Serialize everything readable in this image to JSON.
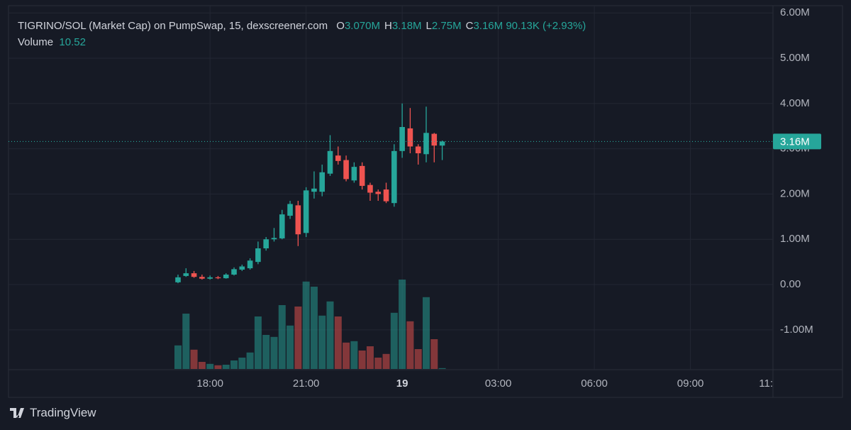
{
  "header": {
    "title": "TIGRINO/SOL (Market Cap) on PumpSwap, 15, dexscreener.com",
    "ohlc": [
      {
        "key": "O",
        "value": "3.070M"
      },
      {
        "key": "H",
        "value": "3.18M"
      },
      {
        "key": "L",
        "value": "2.75M"
      },
      {
        "key": "C",
        "value": "3.16M"
      }
    ],
    "change": "90.13K (+2.93%)",
    "volume_label": "Volume",
    "volume_value": "10.52"
  },
  "chart_data": {
    "type": "candlestick",
    "categories": [
      "17:00",
      "17:15",
      "17:30",
      "17:45",
      "18:00",
      "18:15",
      "18:30",
      "18:45",
      "19:00",
      "19:15",
      "19:30",
      "19:45",
      "20:00",
      "20:15",
      "20:30",
      "20:45",
      "21:00",
      "21:15",
      "21:30",
      "21:45",
      "22:00",
      "22:15",
      "22:30",
      "22:45",
      "23:00",
      "23:15",
      "23:30",
      "23:45",
      "00:00",
      "00:15",
      "00:30",
      "00:45",
      "01:00",
      "01:15"
    ],
    "open": [
      0.05,
      0.19,
      0.25,
      0.17,
      0.13,
      0.16,
      0.14,
      0.22,
      0.33,
      0.36,
      0.5,
      0.8,
      1.0,
      1.02,
      1.52,
      1.75,
      1.14,
      2.05,
      2.05,
      2.45,
      2.85,
      2.75,
      2.3,
      2.62,
      2.2,
      2.05,
      2.1,
      1.8,
      2.95,
      3.45,
      3.05,
      2.88,
      3.33,
      3.07
    ],
    "high": [
      0.22,
      0.36,
      0.3,
      0.22,
      0.2,
      0.19,
      0.25,
      0.38,
      0.44,
      0.58,
      0.95,
      1.05,
      1.25,
      1.65,
      1.85,
      1.85,
      2.15,
      2.5,
      2.65,
      3.3,
      3.05,
      2.85,
      2.7,
      2.7,
      2.25,
      2.1,
      2.25,
      3.1,
      4.0,
      3.9,
      3.1,
      3.93,
      3.35,
      3.18
    ],
    "low": [
      0.03,
      0.17,
      0.15,
      0.11,
      0.11,
      0.12,
      0.13,
      0.2,
      0.3,
      0.33,
      0.45,
      0.75,
      0.95,
      1.0,
      1.45,
      0.85,
      1.05,
      1.9,
      1.95,
      2.4,
      2.65,
      2.28,
      2.25,
      2.1,
      1.85,
      1.85,
      1.8,
      1.72,
      2.8,
      2.9,
      2.65,
      2.7,
      2.7,
      2.75
    ],
    "close": [
      0.16,
      0.25,
      0.17,
      0.13,
      0.16,
      0.14,
      0.22,
      0.34,
      0.4,
      0.53,
      0.8,
      1.0,
      1.03,
      1.55,
      1.78,
      1.11,
      2.08,
      2.12,
      2.48,
      2.95,
      2.73,
      2.33,
      2.6,
      2.18,
      2.03,
      2.0,
      1.84,
      2.95,
      3.48,
      3.05,
      2.9,
      3.35,
      3.07,
      3.16
    ],
    "volume": [
      8.3,
      19.5,
      6.8,
      2.5,
      1.8,
      1.3,
      1.5,
      3.0,
      4.0,
      5.8,
      18.5,
      12.0,
      11.3,
      22.5,
      15.3,
      22.0,
      30.8,
      29.0,
      18.8,
      23.8,
      18.5,
      9.3,
      9.8,
      6.5,
      8.0,
      4.0,
      5.3,
      19.8,
      31.5,
      16.8,
      7.0,
      25.3,
      10.5,
      0.3
    ],
    "up_color": "#26a69a",
    "down_color": "#ef5350",
    "ylim": [
      -1.88,
      6.16
    ],
    "yticks": [
      {
        "value": -1,
        "label": "-1.00M"
      },
      {
        "value": 0,
        "label": "0.00"
      },
      {
        "value": 1,
        "label": "1.00M"
      },
      {
        "value": 2,
        "label": "2.00M"
      },
      {
        "value": 3,
        "label": "3.00M"
      },
      {
        "value": 4,
        "label": "4.00M"
      },
      {
        "value": 5,
        "label": "5.00M"
      },
      {
        "value": 6,
        "label": "6.00M"
      }
    ],
    "xticks": [
      {
        "value": 4,
        "label": "18:00"
      },
      {
        "value": 16,
        "label": "21:00"
      },
      {
        "value": 28,
        "label": "19"
      },
      {
        "value": 40,
        "label": "03:00"
      },
      {
        "value": 52,
        "label": "06:00"
      },
      {
        "value": 64,
        "label": "09:00"
      },
      {
        "value": 76,
        "label": "11:"
      }
    ],
    "last_price": {
      "value": 3.16,
      "label": "3.16M"
    },
    "grid": true
  },
  "footer": {
    "brand": "TradingView"
  }
}
